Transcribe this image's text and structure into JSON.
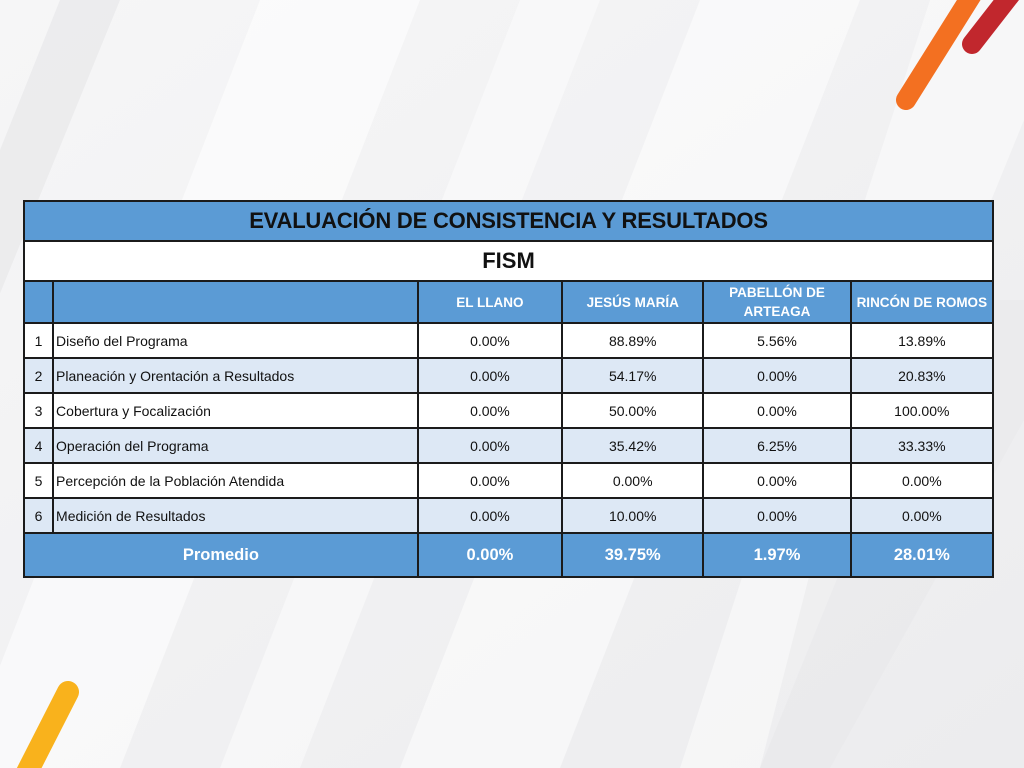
{
  "table": {
    "title": "EVALUACIÓN DE CONSISTENCIA Y RESULTADOS",
    "subtitle": "FISM",
    "columns": [
      "EL LLANO",
      "JESÚS MARÍA",
      "PABELLÓN DE ARTEAGA",
      "RINCÓN DE ROMOS"
    ],
    "rows": [
      {
        "num": "1",
        "label": "Diseño del Programa",
        "values": [
          "0.00%",
          "88.89%",
          "5.56%",
          "13.89%"
        ]
      },
      {
        "num": "2",
        "label": "Planeación y Orentación a Resultados",
        "values": [
          "0.00%",
          "54.17%",
          "0.00%",
          "20.83%"
        ]
      },
      {
        "num": "3",
        "label": "Cobertura y Focalización",
        "values": [
          "0.00%",
          "50.00%",
          "0.00%",
          "100.00%"
        ]
      },
      {
        "num": "4",
        "label": "Operación del Programa",
        "values": [
          "0.00%",
          "35.42%",
          "6.25%",
          "33.33%"
        ]
      },
      {
        "num": "5",
        "label": "Percepción de la Población Atendida",
        "values": [
          "0.00%",
          "0.00%",
          "0.00%",
          "0.00%"
        ]
      },
      {
        "num": "6",
        "label": "Medición de Resultados",
        "values": [
          "0.00%",
          "10.00%",
          "0.00%",
          "0.00%"
        ]
      }
    ],
    "footer": {
      "label": "Promedio",
      "values": [
        "0.00%",
        "39.75%",
        "1.97%",
        "28.01%"
      ]
    }
  },
  "colors": {
    "header_blue": "#5b9bd5",
    "row_alt": "#dde8f5",
    "accent_orange": "#f37021",
    "accent_red": "#c1272d",
    "accent_yellow": "#f9b21c"
  }
}
